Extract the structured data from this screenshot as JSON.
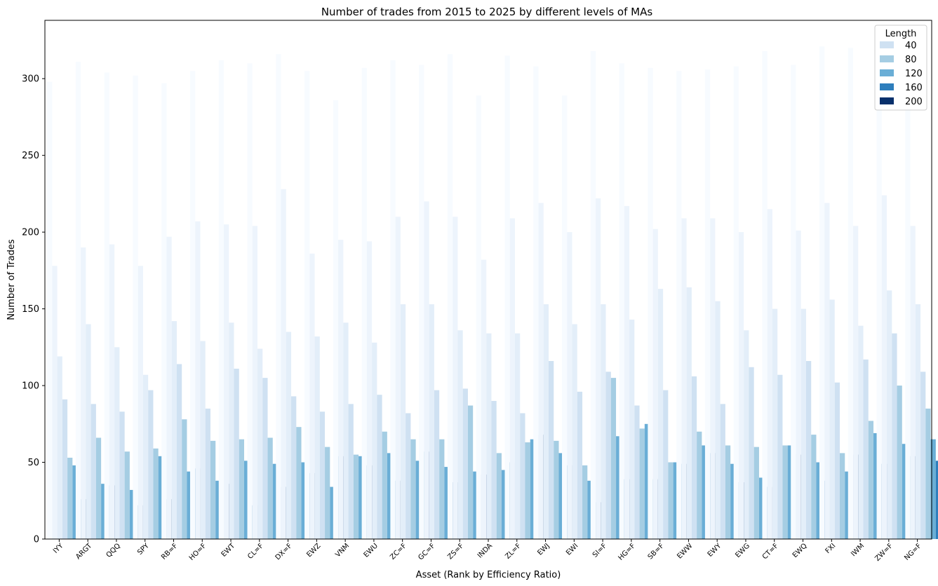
{
  "chart_data": {
    "type": "bar",
    "title": "Number of trades from 2015 to 2025 by different levels of MAs",
    "xlabel": "Asset (Rank by Efficiency Ratio)",
    "ylabel": "Number of Trades",
    "ylim": [
      0,
      338
    ],
    "yticks": [
      0,
      50,
      100,
      150,
      200,
      250,
      300
    ],
    "grid": false,
    "legend": {
      "title": "Length",
      "placement": "top-right"
    },
    "categories": [
      "IYY",
      "ARGT",
      "QQQ",
      "SPY",
      "RB=F",
      "HO=F",
      "EWT",
      "CL=F",
      "DX=F",
      "EWZ",
      "VNM",
      "EWU",
      "ZC=F",
      "GC=F",
      "ZS=F",
      "INDA",
      "ZL=F",
      "EWJ",
      "EWI",
      "SI=F",
      "HG=F",
      "SB=F",
      "EWW",
      "EWY",
      "EWG",
      "CT=F",
      "EWQ",
      "FXI",
      "IWM",
      "ZW=F",
      "NG=F"
    ],
    "hidden_series": [
      {
        "color": "#f7fbff",
        "values": [
          298,
          311,
          304,
          302,
          297,
          305,
          312,
          310,
          316,
          305,
          286,
          307,
          312,
          309,
          316,
          289,
          315,
          308,
          289,
          318,
          310,
          307,
          305,
          306,
          308,
          318,
          309,
          321,
          320,
          288,
          280
        ]
      },
      {
        "color": "#edf4fc",
        "values": [
          178,
          190,
          192,
          178,
          197,
          207,
          205,
          204,
          228,
          186,
          195,
          194,
          210,
          220,
          210,
          182,
          209,
          219,
          200,
          222,
          217,
          202,
          209,
          209,
          200,
          215,
          201,
          219,
          204,
          224,
          204
        ]
      },
      {
        "color": "#e3eef9",
        "values": [
          119,
          140,
          125,
          107,
          142,
          129,
          141,
          124,
          135,
          132,
          141,
          128,
          153,
          153,
          136,
          134,
          134,
          153,
          140,
          153,
          143,
          163,
          164,
          155,
          136,
          150,
          150,
          156,
          139,
          162,
          153
        ]
      }
    ],
    "series": [
      {
        "name": "40",
        "color": "#cfe1f2",
        "values": [
          91,
          88,
          83,
          97,
          114,
          85,
          111,
          105,
          93,
          83,
          88,
          94,
          82,
          97,
          98,
          90,
          82,
          116,
          96,
          109,
          87,
          97,
          106,
          88,
          112,
          107,
          116,
          102,
          117,
          134,
          109
        ]
      },
      {
        "name": "80",
        "color": "#a5cde3",
        "values": [
          53,
          66,
          57,
          59,
          78,
          64,
          65,
          66,
          73,
          60,
          55,
          70,
          65,
          65,
          87,
          56,
          63,
          64,
          48,
          105,
          72,
          50,
          70,
          61,
          60,
          61,
          68,
          56,
          77,
          100,
          85
        ]
      },
      {
        "name": "120",
        "color": "#6aaed6",
        "values": [
          48,
          36,
          32,
          54,
          44,
          38,
          51,
          49,
          50,
          34,
          54,
          56,
          51,
          47,
          44,
          45,
          65,
          56,
          38,
          67,
          75,
          50,
          61,
          49,
          40,
          61,
          50,
          44,
          69,
          62,
          65
        ]
      },
      {
        "name": "160",
        "color": "#2e7ebc",
        "values": [
          26,
          35,
          22,
          26,
          46,
          36,
          22,
          34,
          43,
          54,
          48,
          38,
          57,
          37,
          42,
          50,
          68,
          48,
          24,
          39,
          39,
          49,
          56,
          37,
          34,
          55,
          38,
          55,
          49,
          54,
          51
        ]
      },
      {
        "name": "200",
        "color": "#08306b",
        "values": [
          26,
          35,
          22,
          26,
          46,
          36,
          22,
          34,
          43,
          54,
          48,
          38,
          57,
          37,
          42,
          50,
          68,
          48,
          24,
          39,
          39,
          49,
          56,
          37,
          34,
          55,
          38,
          55,
          49,
          54,
          51
        ]
      }
    ]
  }
}
